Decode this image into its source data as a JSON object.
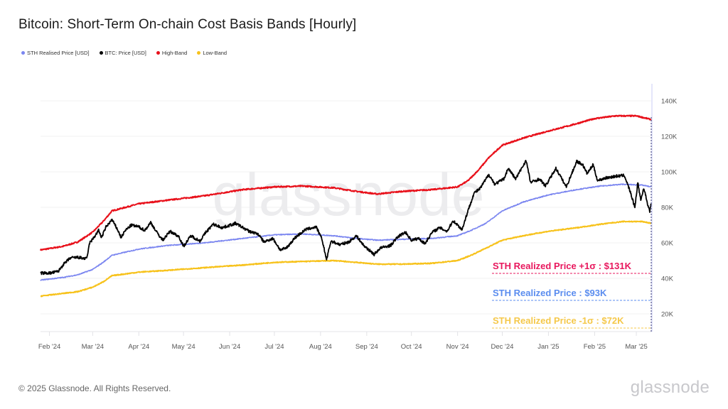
{
  "title": "Bitcoin: Short-Term On-chain Cost Basis Bands [Hourly]",
  "footer": {
    "copyright": "© 2025 Glassnode. All Rights Reserved.",
    "logo": "glassnode"
  },
  "watermark": "glassnode",
  "colors": {
    "sth": "#7b86f0",
    "btc": "#000000",
    "high": "#e8101a",
    "low": "#f7c21b",
    "ann_high": "#e8175d",
    "ann_sth": "#5b8def",
    "ann_low": "#f5c84a",
    "cursor": "#5a5a8a"
  },
  "chart_data": {
    "type": "line",
    "title": "Bitcoin: Short-Term On-chain Cost Basis Bands [Hourly]",
    "xlabel": "",
    "ylabel": "",
    "ylim": [
      0,
      150000
    ],
    "y_ticks": [
      20000,
      40000,
      60000,
      80000,
      100000,
      120000,
      140000
    ],
    "y_tick_labels": [
      "20K",
      "40K",
      "60K",
      "80K",
      "100K",
      "120K",
      "140K"
    ],
    "y_axis_position": "right",
    "x_range": [
      "2024-01-26",
      "2025-03-11"
    ],
    "x_ticks": [
      "2024-02-01",
      "2024-03-01",
      "2024-04-01",
      "2024-05-01",
      "2024-06-01",
      "2024-07-01",
      "2024-08-01",
      "2024-09-01",
      "2024-10-01",
      "2024-11-01",
      "2024-12-01",
      "2025-01-01",
      "2025-02-01",
      "2025-03-01"
    ],
    "x_tick_labels": [
      "Feb '24",
      "Mar '24",
      "Apr '24",
      "May '24",
      "Jun '24",
      "Jul '24",
      "Aug '24",
      "Sep '24",
      "Oct '24",
      "Nov '24",
      "Dec '24",
      "Jan '25",
      "Feb '25",
      "Mar '25"
    ],
    "grid": true,
    "legend_position": "top-left",
    "legend": [
      {
        "label": "STH Realised Price [USD]",
        "color": "#7b86f0"
      },
      {
        "label": "BTC: Price [USD]",
        "color": "#000000"
      },
      {
        "label": "High-Band",
        "color": "#e8101a"
      },
      {
        "label": "Low-Band",
        "color": "#f7c21b"
      }
    ],
    "series": [
      {
        "name": "High-Band",
        "color": "#e8101a",
        "points": [
          [
            "2024-01-26",
            56000
          ],
          [
            "2024-02-10",
            58000
          ],
          [
            "2024-02-20",
            60500
          ],
          [
            "2024-03-01",
            66000
          ],
          [
            "2024-03-08",
            72000
          ],
          [
            "2024-03-14",
            78000
          ],
          [
            "2024-04-01",
            82000
          ],
          [
            "2024-04-20",
            84000
          ],
          [
            "2024-05-15",
            86500
          ],
          [
            "2024-06-10",
            90000
          ],
          [
            "2024-07-01",
            91500
          ],
          [
            "2024-07-20",
            92000
          ],
          [
            "2024-08-10",
            91000
          ],
          [
            "2024-08-25",
            89000
          ],
          [
            "2024-09-08",
            87500
          ],
          [
            "2024-09-25",
            89000
          ],
          [
            "2024-10-15",
            90000
          ],
          [
            "2024-11-01",
            91500
          ],
          [
            "2024-11-08",
            95000
          ],
          [
            "2024-11-15",
            101000
          ],
          [
            "2024-11-22",
            108000
          ],
          [
            "2024-12-01",
            115000
          ],
          [
            "2024-12-15",
            119000
          ],
          [
            "2025-01-01",
            123000
          ],
          [
            "2025-01-15",
            126000
          ],
          [
            "2025-02-01",
            130000
          ],
          [
            "2025-02-15",
            131500
          ],
          [
            "2025-03-01",
            131500
          ],
          [
            "2025-03-11",
            129500
          ]
        ]
      },
      {
        "name": "STH Realised Price [USD]",
        "color": "#7b86f0",
        "points": [
          [
            "2024-01-26",
            39000
          ],
          [
            "2024-02-10",
            40500
          ],
          [
            "2024-02-20",
            42000
          ],
          [
            "2024-03-01",
            45000
          ],
          [
            "2024-03-08",
            49000
          ],
          [
            "2024-03-14",
            53000
          ],
          [
            "2024-04-01",
            56500
          ],
          [
            "2024-04-20",
            58500
          ],
          [
            "2024-05-15",
            60000
          ],
          [
            "2024-06-10",
            62500
          ],
          [
            "2024-07-01",
            64500
          ],
          [
            "2024-07-20",
            65000
          ],
          [
            "2024-08-10",
            64000
          ],
          [
            "2024-08-25",
            62500
          ],
          [
            "2024-09-08",
            61500
          ],
          [
            "2024-09-25",
            62000
          ],
          [
            "2024-10-15",
            62500
          ],
          [
            "2024-11-01",
            64000
          ],
          [
            "2024-11-10",
            67000
          ],
          [
            "2024-11-20",
            71000
          ],
          [
            "2024-12-01",
            78000
          ],
          [
            "2024-12-15",
            83000
          ],
          [
            "2025-01-01",
            87000
          ],
          [
            "2025-01-20",
            90000
          ],
          [
            "2025-02-05",
            92000
          ],
          [
            "2025-02-20",
            93000
          ],
          [
            "2025-03-05",
            92500
          ],
          [
            "2025-03-11",
            91500
          ]
        ]
      },
      {
        "name": "Low-Band",
        "color": "#f7c21b",
        "points": [
          [
            "2024-01-26",
            30000
          ],
          [
            "2024-02-10",
            31500
          ],
          [
            "2024-02-20",
            32500
          ],
          [
            "2024-03-01",
            35000
          ],
          [
            "2024-03-08",
            38000
          ],
          [
            "2024-03-14",
            41500
          ],
          [
            "2024-04-01",
            43500
          ],
          [
            "2024-04-20",
            44500
          ],
          [
            "2024-05-15",
            46000
          ],
          [
            "2024-06-10",
            47500
          ],
          [
            "2024-07-01",
            49000
          ],
          [
            "2024-07-20",
            49500
          ],
          [
            "2024-08-10",
            50000
          ],
          [
            "2024-08-25",
            49000
          ],
          [
            "2024-09-08",
            48000
          ],
          [
            "2024-09-25",
            48000
          ],
          [
            "2024-10-15",
            48500
          ],
          [
            "2024-11-01",
            50000
          ],
          [
            "2024-11-10",
            53000
          ],
          [
            "2024-11-20",
            57000
          ],
          [
            "2024-12-01",
            61500
          ],
          [
            "2024-12-15",
            64000
          ],
          [
            "2025-01-01",
            66500
          ],
          [
            "2025-01-20",
            68500
          ],
          [
            "2025-02-05",
            70500
          ],
          [
            "2025-02-20",
            72000
          ],
          [
            "2025-03-05",
            72000
          ],
          [
            "2025-03-11",
            71000
          ]
        ]
      },
      {
        "name": "BTC: Price [USD]",
        "color": "#000000",
        "points": [
          [
            "2024-01-26",
            43000
          ],
          [
            "2024-02-02",
            43000
          ],
          [
            "2024-02-07",
            44000
          ],
          [
            "2024-02-10",
            47500
          ],
          [
            "2024-02-15",
            51500
          ],
          [
            "2024-02-20",
            51800
          ],
          [
            "2024-02-26",
            51000
          ],
          [
            "2024-02-28",
            60000
          ],
          [
            "2024-03-01",
            62000
          ],
          [
            "2024-03-05",
            67000
          ],
          [
            "2024-03-07",
            63000
          ],
          [
            "2024-03-10",
            69000
          ],
          [
            "2024-03-14",
            73000
          ],
          [
            "2024-03-18",
            67000
          ],
          [
            "2024-03-20",
            63000
          ],
          [
            "2024-03-23",
            67000
          ],
          [
            "2024-03-27",
            70000
          ],
          [
            "2024-04-01",
            69000
          ],
          [
            "2024-04-05",
            67000
          ],
          [
            "2024-04-09",
            71500
          ],
          [
            "2024-04-13",
            66000
          ],
          [
            "2024-04-17",
            61500
          ],
          [
            "2024-04-22",
            66500
          ],
          [
            "2024-04-28",
            63500
          ],
          [
            "2024-05-01",
            58000
          ],
          [
            "2024-05-06",
            64000
          ],
          [
            "2024-05-12",
            61000
          ],
          [
            "2024-05-16",
            66000
          ],
          [
            "2024-05-21",
            70500
          ],
          [
            "2024-05-27",
            68500
          ],
          [
            "2024-06-05",
            71000
          ],
          [
            "2024-06-08",
            69500
          ],
          [
            "2024-06-14",
            66500
          ],
          [
            "2024-06-20",
            65000
          ],
          [
            "2024-06-24",
            60500
          ],
          [
            "2024-06-30",
            62500
          ],
          [
            "2024-07-05",
            56000
          ],
          [
            "2024-07-09",
            57000
          ],
          [
            "2024-07-15",
            63000
          ],
          [
            "2024-07-22",
            67500
          ],
          [
            "2024-07-29",
            69000
          ],
          [
            "2024-08-02",
            62000
          ],
          [
            "2024-08-05",
            50500
          ],
          [
            "2024-08-08",
            61000
          ],
          [
            "2024-08-14",
            59000
          ],
          [
            "2024-08-20",
            60500
          ],
          [
            "2024-08-25",
            64000
          ],
          [
            "2024-08-30",
            58500
          ],
          [
            "2024-09-06",
            53500
          ],
          [
            "2024-09-10",
            57000
          ],
          [
            "2024-09-17",
            58500
          ],
          [
            "2024-09-22",
            63500
          ],
          [
            "2024-09-27",
            66000
          ],
          [
            "2024-10-01",
            61500
          ],
          [
            "2024-10-06",
            62500
          ],
          [
            "2024-10-10",
            59500
          ],
          [
            "2024-10-15",
            66000
          ],
          [
            "2024-10-20",
            68500
          ],
          [
            "2024-10-25",
            66500
          ],
          [
            "2024-10-29",
            72500
          ],
          [
            "2024-11-04",
            67500
          ],
          [
            "2024-11-07",
            75500
          ],
          [
            "2024-11-12",
            88000
          ],
          [
            "2024-11-16",
            90500
          ],
          [
            "2024-11-22",
            98500
          ],
          [
            "2024-11-26",
            93000
          ],
          [
            "2024-12-02",
            96000
          ],
          [
            "2024-12-05",
            102000
          ],
          [
            "2024-12-10",
            96000
          ],
          [
            "2024-12-17",
            106500
          ],
          [
            "2024-12-20",
            94000
          ],
          [
            "2024-12-26",
            96000
          ],
          [
            "2024-12-30",
            92000
          ],
          [
            "2025-01-06",
            102000
          ],
          [
            "2025-01-13",
            91500
          ],
          [
            "2025-01-20",
            106000
          ],
          [
            "2025-01-24",
            104000
          ],
          [
            "2025-01-27",
            99000
          ],
          [
            "2025-01-31",
            104000
          ],
          [
            "2025-02-03",
            95000
          ],
          [
            "2025-02-08",
            96500
          ],
          [
            "2025-02-15",
            97500
          ],
          [
            "2025-02-21",
            98000
          ],
          [
            "2025-02-25",
            88500
          ],
          [
            "2025-02-28",
            80000
          ],
          [
            "2025-03-02",
            94000
          ],
          [
            "2025-03-04",
            84000
          ],
          [
            "2025-03-06",
            91000
          ],
          [
            "2025-03-09",
            80500
          ],
          [
            "2025-03-10",
            78000
          ],
          [
            "2025-03-11",
            82000
          ]
        ]
      }
    ],
    "annotations": [
      {
        "label": "STH Realized Price +1σ : $131K",
        "color": "#e8175d",
        "value_label": "$131K"
      },
      {
        "label": "STH Realized Price  : $93K",
        "color": "#5b8def",
        "value_label": "$93K"
      },
      {
        "label": "STH Realized Price -1σ : $72K",
        "color": "#f5c84a",
        "value_label": "$72K"
      }
    ]
  }
}
